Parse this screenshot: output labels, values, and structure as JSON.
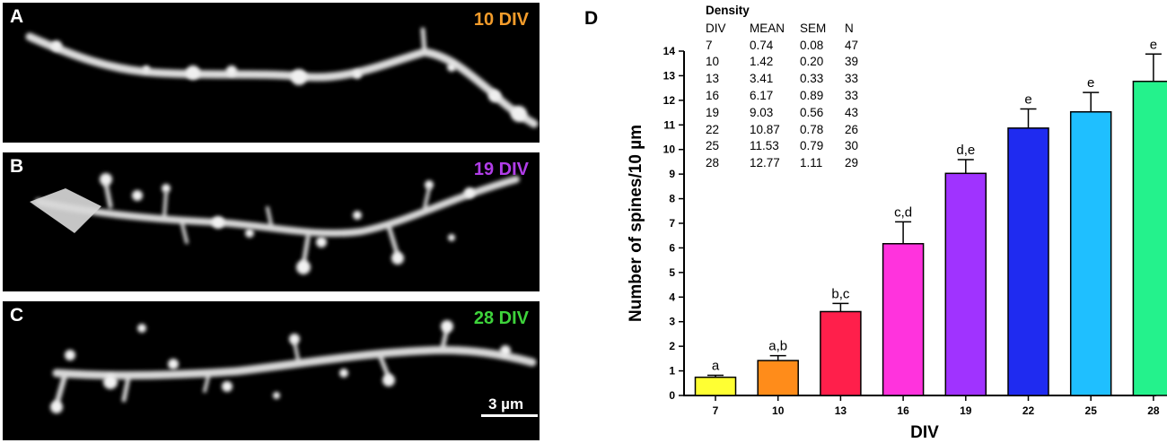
{
  "panels": [
    {
      "letter": "A",
      "div_label": "10 DIV",
      "color": "#f39c2b"
    },
    {
      "letter": "B",
      "div_label": "19 DIV",
      "color": "#b13de8"
    },
    {
      "letter": "C",
      "div_label": "28 DIV",
      "color": "#3ed33b"
    }
  ],
  "scale_bar": {
    "label": "3 µm"
  },
  "chart_panel_letter": "D",
  "density_table": {
    "title": "Density",
    "headers": [
      "DIV",
      "MEAN",
      "SEM",
      "N"
    ],
    "rows": [
      [
        "7",
        "0.74",
        "0.08",
        "47"
      ],
      [
        "10",
        "1.42",
        "0.20",
        "39"
      ],
      [
        "13",
        "3.41",
        "0.33",
        "33"
      ],
      [
        "16",
        "6.17",
        "0.89",
        "33"
      ],
      [
        "19",
        "9.03",
        "0.56",
        "43"
      ],
      [
        "22",
        "10.87",
        "0.78",
        "26"
      ],
      [
        "25",
        "11.53",
        "0.79",
        "30"
      ],
      [
        "28",
        "12.77",
        "1.11",
        "29"
      ]
    ]
  },
  "chart_data": {
    "type": "bar",
    "categories": [
      "7",
      "10",
      "13",
      "16",
      "19",
      "22",
      "25",
      "28"
    ],
    "values": [
      0.74,
      1.42,
      3.41,
      6.17,
      9.03,
      10.87,
      11.53,
      12.77
    ],
    "errors": [
      0.08,
      0.2,
      0.33,
      0.89,
      0.56,
      0.78,
      0.79,
      1.11
    ],
    "significance_labels": [
      "a",
      "a,b",
      "b,c",
      "c,d",
      "d,e",
      "e",
      "e",
      "e"
    ],
    "colors": [
      "#ffff33",
      "#ff8c1a",
      "#ff1f4b",
      "#ff33dd",
      "#a033ff",
      "#1f2bf0",
      "#1fbfff",
      "#24f28c"
    ],
    "title": "",
    "xlabel": "DIV",
    "ylabel": "Number of spines/10 µm",
    "ylim": [
      0,
      14
    ],
    "yticks": [
      0,
      1,
      2,
      3,
      4,
      5,
      6,
      7,
      8,
      9,
      10,
      11,
      12,
      13,
      14
    ],
    "grid": false
  }
}
